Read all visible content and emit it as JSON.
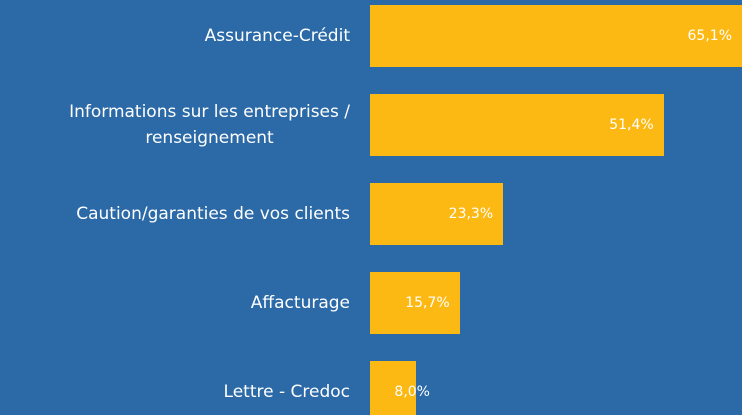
{
  "chart_data": {
    "type": "bar",
    "orientation": "horizontal",
    "categories": [
      "Assurance-Crédit",
      "Informations sur les entreprises /\nrenseignement",
      "Caution/garanties de vos clients",
      "Affacturage",
      "Lettre - Credoc"
    ],
    "values": [
      65.1,
      51.4,
      23.3,
      15.7,
      8.0
    ],
    "value_labels": [
      "65,1%",
      "51,4%",
      "23,3%",
      "15,7%",
      "8,0%"
    ],
    "color": "#fdb913"
  }
}
